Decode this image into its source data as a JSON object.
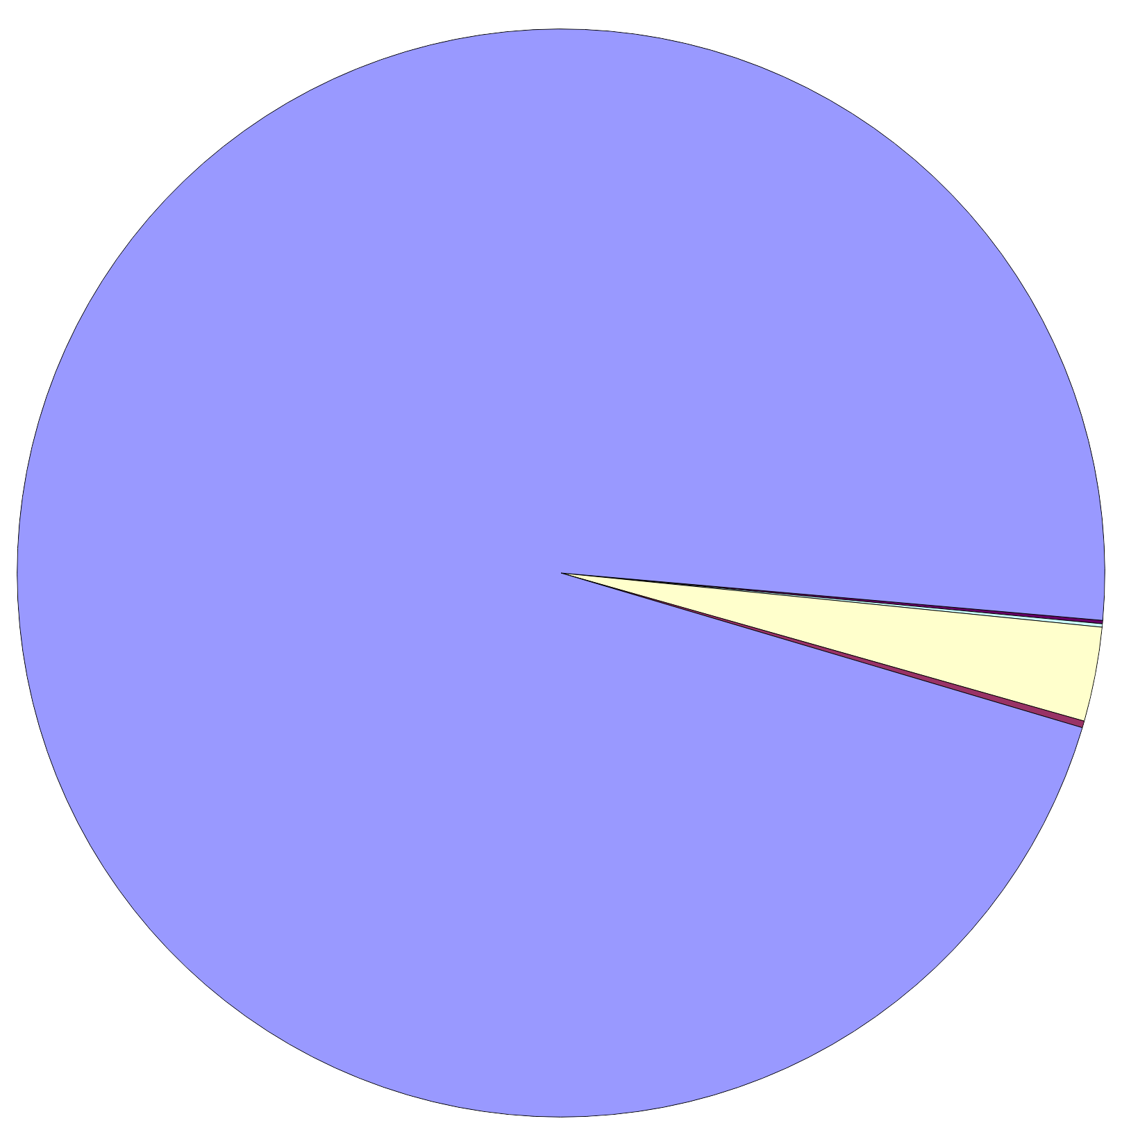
{
  "chart_data": {
    "type": "pie",
    "categories": [
      null,
      null,
      null,
      null,
      null
    ],
    "values": [
      0.1,
      0.1,
      2.8,
      0.2,
      96.8
    ],
    "colors": [
      "#660066",
      "#ccffff",
      "#ffffcc",
      "#993366",
      "#9999ff"
    ],
    "legend": false
  }
}
